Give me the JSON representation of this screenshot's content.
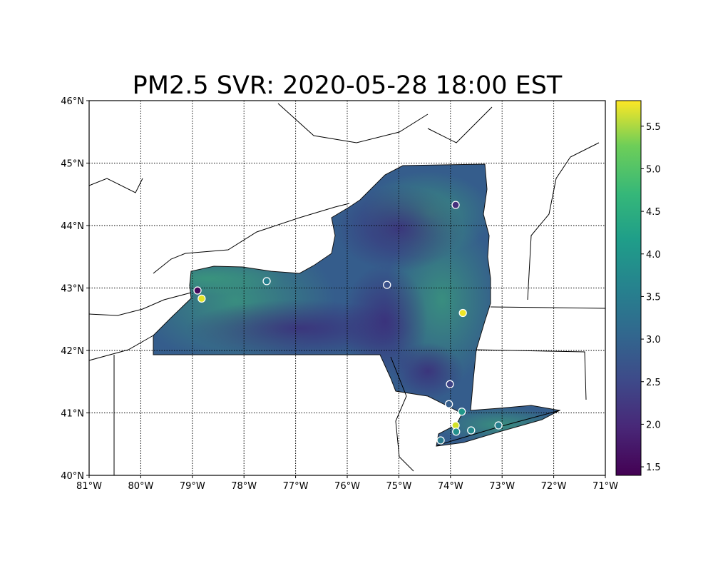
{
  "title": "PM2.5 SVR: 2020-05-28 18:00 EST",
  "map": {
    "lon_range": [
      -81,
      -71
    ],
    "lat_range": [
      40,
      46
    ],
    "lon_ticks": [
      "81°W",
      "80°W",
      "79°W",
      "78°W",
      "77°W",
      "76°W",
      "75°W",
      "74°W",
      "73°W",
      "72°W",
      "71°W"
    ],
    "lat_ticks": [
      "40°N",
      "41°N",
      "42°N",
      "43°N",
      "44°N",
      "45°N",
      "46°N"
    ],
    "gridlines": "dotted",
    "colormap": "viridis"
  },
  "colorbar": {
    "range": [
      1.4,
      5.8
    ],
    "ticks": [
      "1.5",
      "2.0",
      "2.5",
      "3.0",
      "3.5",
      "4.0",
      "4.5",
      "5.0",
      "5.5"
    ],
    "position": "right"
  },
  "stations": [
    {
      "lon": -73.9,
      "lat": 44.33,
      "value": 2.0
    },
    {
      "lon": -75.23,
      "lat": 43.05,
      "value": 2.5
    },
    {
      "lon": -77.56,
      "lat": 43.11,
      "value": 3.3
    },
    {
      "lon": -78.9,
      "lat": 42.96,
      "value": 1.5
    },
    {
      "lon": -78.82,
      "lat": 42.83,
      "value": 5.6
    },
    {
      "lon": -73.76,
      "lat": 42.6,
      "value": 5.7
    },
    {
      "lon": -74.01,
      "lat": 41.46,
      "value": 2.3
    },
    {
      "lon": -74.03,
      "lat": 41.14,
      "value": 2.7
    },
    {
      "lon": -73.78,
      "lat": 41.02,
      "value": 3.7
    },
    {
      "lon": -73.9,
      "lat": 40.8,
      "value": 5.5
    },
    {
      "lon": -73.89,
      "lat": 40.7,
      "value": 3.6
    },
    {
      "lon": -73.6,
      "lat": 40.72,
      "value": 3.5
    },
    {
      "lon": -73.07,
      "lat": 40.8,
      "value": 3.3
    },
    {
      "lon": -74.19,
      "lat": 40.56,
      "value": 3.2
    }
  ]
}
